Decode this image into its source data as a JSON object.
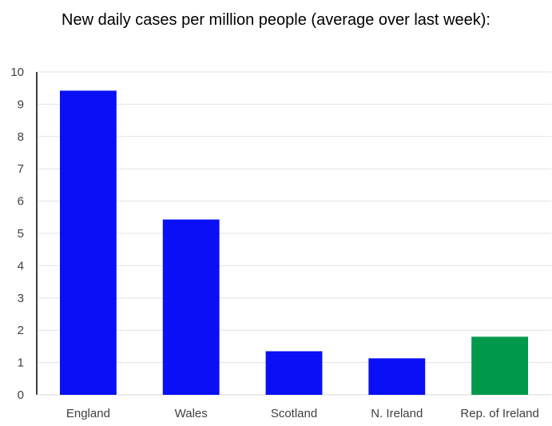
{
  "chart_data": {
    "type": "bar",
    "title": "New daily cases per million people (average over last week):",
    "categories": [
      "England",
      "Wales",
      "Scotland",
      "N. Ireland",
      "Rep. of Ireland"
    ],
    "values": [
      9.42,
      5.43,
      1.35,
      1.13,
      1.8
    ],
    "colors": [
      "#0a0ff5",
      "#0a0ff5",
      "#0a0ff5",
      "#0a0ff5",
      "#00994c"
    ],
    "ylim": [
      0,
      10
    ],
    "yticks": [
      0,
      1,
      2,
      3,
      4,
      5,
      6,
      7,
      8,
      9,
      10
    ],
    "xlabel": "",
    "ylabel": "",
    "grid": true
  }
}
